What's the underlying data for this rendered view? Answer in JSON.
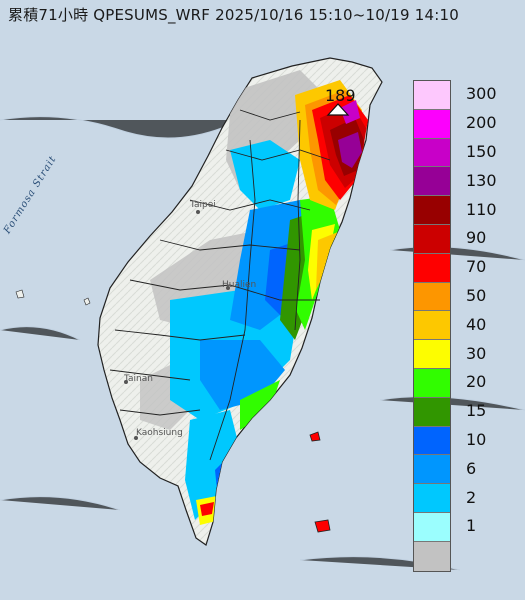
{
  "title": "累積71小時 QPESUMS_WRF 2025/10/16 15:10~10/19 14:10",
  "map": {
    "strait_label": "Formosa Strait",
    "cities": [
      {
        "name": "Taipei",
        "label": "Taipei"
      },
      {
        "name": "Hualien",
        "label": "Hualien"
      },
      {
        "name": "Tainan",
        "label": "Tainan"
      },
      {
        "name": "Kaohsiung",
        "label": "Kaohsiung"
      }
    ],
    "max_value_label": "189"
  },
  "legend": {
    "items": [
      {
        "label": "300",
        "color": "#fdc8fd"
      },
      {
        "label": "200",
        "color": "#fc00fd"
      },
      {
        "label": "150",
        "color": "#c800c8"
      },
      {
        "label": "130",
        "color": "#960096"
      },
      {
        "label": "110",
        "color": "#980000"
      },
      {
        "label": "90",
        "color": "#cc0000"
      },
      {
        "label": "70",
        "color": "#fe0000"
      },
      {
        "label": "50",
        "color": "#fd9600"
      },
      {
        "label": "40",
        "color": "#fdc800"
      },
      {
        "label": "30",
        "color": "#fdfd00"
      },
      {
        "label": "20",
        "color": "#31fd00"
      },
      {
        "label": "15",
        "color": "#319600"
      },
      {
        "label": "10",
        "color": "#0064fe"
      },
      {
        "label": "6",
        "color": "#0096fe"
      },
      {
        "label": "2",
        "color": "#00c8fe"
      },
      {
        "label": "1",
        "color": "#9bfefe"
      },
      {
        "label": "",
        "color": "#c2c2c2"
      }
    ]
  }
}
